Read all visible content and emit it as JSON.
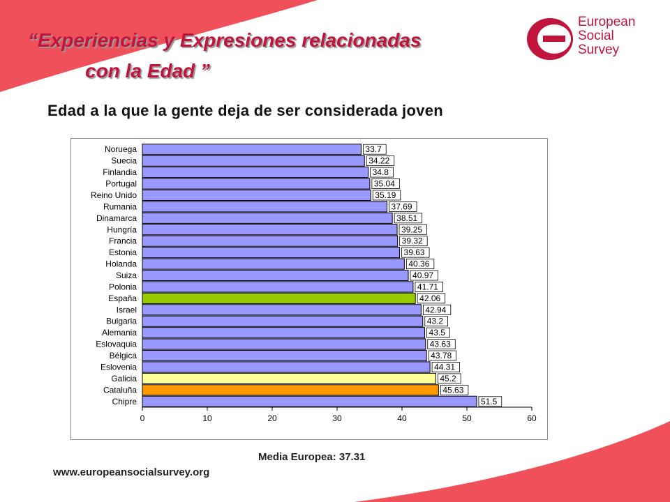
{
  "header": {
    "title_line1": "“Experiencias y Expresiones relacionadas",
    "title_line2": "con la Edad ”",
    "subtitle": "Edad a la que la gente deja de ser considerada joven"
  },
  "logo": {
    "line1": "European",
    "line2": "Social",
    "line3": "Survey"
  },
  "colors": {
    "brand_red": "#c0143c",
    "bar_default": "#9999ff",
    "bar_spain": "#99cc00",
    "bar_galicia": "#ffff99",
    "bar_cataluna": "#ff9900"
  },
  "chart_data": {
    "type": "bar",
    "orientation": "horizontal",
    "categories": [
      "Noruega",
      "Suecia",
      "Finlandia",
      "Portugal",
      "Reino Unido",
      "Rumania",
      "Dinamarca",
      "Hungría",
      "Francia",
      "Estonia",
      "Holanda",
      "Suiza",
      "Polonia",
      "España",
      "Israel",
      "Bulgaria",
      "Alemania",
      "Eslovaquia",
      "Bélgica",
      "Eslovenia",
      "Galicia",
      "Cataluña",
      "Chipre"
    ],
    "values": [
      33.7,
      34.22,
      34.8,
      35.04,
      35.19,
      37.69,
      38.51,
      39.25,
      39.32,
      39.63,
      40.36,
      40.97,
      41.71,
      42.06,
      42.94,
      43.2,
      43.5,
      43.63,
      43.78,
      44.31,
      45.2,
      45.63,
      51.5
    ],
    "value_labels": [
      "33.7",
      "34.22",
      "34.8",
      "35.04",
      "35.19",
      "37.69",
      "38.51",
      "39.25",
      "39.32",
      "39.63",
      "40.36",
      "40.97",
      "41.71",
      "42.06",
      "42.94",
      "43.2",
      "43.5",
      "43.63",
      "43.78",
      "44.31",
      "45.2",
      "45.63",
      "51.5"
    ],
    "highlight": {
      "España": "#99cc00",
      "Galicia": "#ffff99",
      "Cataluña": "#ff9900"
    },
    "xlim": [
      0,
      60
    ],
    "xticks": [
      "0",
      "10",
      "20",
      "30",
      "40",
      "50",
      "60"
    ],
    "grid": false,
    "title": "",
    "xlabel": "",
    "ylabel": ""
  },
  "footer": {
    "media": "Media Europea: 37.31",
    "url": "www.europeansocialsurvey.org"
  }
}
